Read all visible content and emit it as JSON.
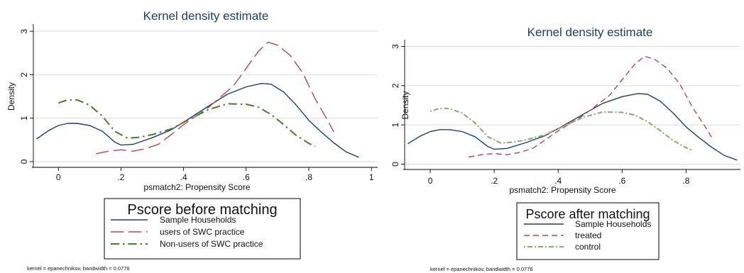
{
  "chart_data": [
    {
      "type": "line",
      "title": "Kernel density estimate",
      "xlabel": "psmatch2: Propensity Score",
      "ylabel": "Density",
      "xlim": [
        -0.08,
        1.02
      ],
      "ylim": [
        -0.1,
        3.1
      ],
      "xticks": [
        0,
        0.2,
        0.4,
        0.6,
        0.8,
        1
      ],
      "xtick_labels": [
        "0",
        ".2",
        ".4",
        ".6",
        ".8",
        "1"
      ],
      "yticks": [
        0,
        1,
        2,
        3
      ],
      "ytick_labels": [
        "0",
        "1",
        "2",
        "3"
      ],
      "grid": "horizontal",
      "legend_title": "Pscore before matching",
      "legend_placement": "below",
      "note": "kernel = epanechnikov, bandwidth = 0.0776",
      "series": [
        {
          "name": "Sample Households",
          "color": "#1f3f66",
          "dash": "solid",
          "x": [
            -0.07,
            -0.03,
            0.0,
            0.03,
            0.06,
            0.1,
            0.14,
            0.18,
            0.2,
            0.24,
            0.3,
            0.36,
            0.42,
            0.48,
            0.54,
            0.6,
            0.65,
            0.68,
            0.72,
            0.76,
            0.8,
            0.84,
            0.88,
            0.92,
            0.96
          ],
          "y": [
            0.52,
            0.72,
            0.83,
            0.88,
            0.88,
            0.83,
            0.7,
            0.45,
            0.38,
            0.4,
            0.55,
            0.73,
            1.0,
            1.28,
            1.55,
            1.72,
            1.8,
            1.78,
            1.6,
            1.3,
            0.95,
            0.68,
            0.43,
            0.22,
            0.1
          ]
        },
        {
          "name": "users of SWC practice",
          "color": "#b5474d",
          "dash": "longdash",
          "x": [
            0.12,
            0.16,
            0.2,
            0.24,
            0.28,
            0.32,
            0.36,
            0.4,
            0.44,
            0.48,
            0.52,
            0.56,
            0.6,
            0.64,
            0.67,
            0.7,
            0.74,
            0.78,
            0.82,
            0.86,
            0.88
          ],
          "y": [
            0.18,
            0.24,
            0.27,
            0.24,
            0.3,
            0.4,
            0.62,
            0.85,
            1.05,
            1.25,
            1.5,
            1.75,
            2.15,
            2.55,
            2.75,
            2.68,
            2.45,
            2.05,
            1.45,
            0.95,
            0.68
          ]
        },
        {
          "name": "Non-users of SWC practice",
          "color": "#4a7a2a",
          "dash": "dashdot",
          "x": [
            0.0,
            0.03,
            0.06,
            0.1,
            0.14,
            0.18,
            0.22,
            0.26,
            0.3,
            0.36,
            0.42,
            0.48,
            0.54,
            0.6,
            0.64,
            0.68,
            0.72,
            0.76,
            0.8,
            0.82
          ],
          "y": [
            1.35,
            1.42,
            1.42,
            1.3,
            1.05,
            0.7,
            0.54,
            0.56,
            0.62,
            0.75,
            0.98,
            1.2,
            1.33,
            1.32,
            1.25,
            1.08,
            0.85,
            0.6,
            0.42,
            0.35
          ]
        }
      ]
    },
    {
      "type": "line",
      "title": "Kernel density estimate",
      "xlabel": "psmatch2: Propensity Score",
      "ylabel": "Density",
      "xlim": [
        -0.08,
        0.97
      ],
      "ylim": [
        -0.1,
        3.1
      ],
      "xticks": [
        0,
        0.2,
        0.4,
        0.6,
        0.8
      ],
      "xtick_labels": [
        "0",
        ".2",
        ".4",
        ".6",
        ".8"
      ],
      "yticks": [
        0,
        1,
        2,
        3
      ],
      "ytick_labels": [
        "0",
        "1",
        "2",
        "3"
      ],
      "grid": "horizontal",
      "legend_title": "Pscore after matching",
      "legend_placement": "below",
      "note": "kernel = epanechnikov, bandwidth = 0.0776",
      "series": [
        {
          "name": "Sample Households",
          "color": "#1f3f66",
          "dash": "solid",
          "x": [
            -0.07,
            -0.03,
            0.0,
            0.03,
            0.06,
            0.1,
            0.14,
            0.18,
            0.2,
            0.24,
            0.3,
            0.36,
            0.42,
            0.48,
            0.54,
            0.6,
            0.65,
            0.68,
            0.72,
            0.76,
            0.8,
            0.84,
            0.88,
            0.92,
            0.96
          ],
          "y": [
            0.52,
            0.72,
            0.83,
            0.88,
            0.88,
            0.83,
            0.7,
            0.45,
            0.38,
            0.4,
            0.55,
            0.73,
            1.0,
            1.28,
            1.55,
            1.72,
            1.8,
            1.78,
            1.6,
            1.3,
            0.95,
            0.68,
            0.43,
            0.22,
            0.1
          ]
        },
        {
          "name": "treated",
          "color": "#b5474d",
          "dash": "dash",
          "x": [
            0.12,
            0.16,
            0.2,
            0.24,
            0.28,
            0.32,
            0.36,
            0.4,
            0.44,
            0.48,
            0.52,
            0.56,
            0.6,
            0.64,
            0.67,
            0.7,
            0.74,
            0.78,
            0.82,
            0.86,
            0.88
          ],
          "y": [
            0.18,
            0.24,
            0.27,
            0.24,
            0.3,
            0.4,
            0.62,
            0.85,
            1.05,
            1.25,
            1.5,
            1.75,
            2.15,
            2.55,
            2.75,
            2.68,
            2.45,
            2.05,
            1.45,
            0.95,
            0.68
          ]
        },
        {
          "name": "control",
          "color": "#8aa86a",
          "dash": "dotdash",
          "x": [
            0.0,
            0.03,
            0.06,
            0.1,
            0.14,
            0.18,
            0.22,
            0.26,
            0.3,
            0.36,
            0.42,
            0.48,
            0.54,
            0.6,
            0.64,
            0.68,
            0.72,
            0.76,
            0.8,
            0.82
          ],
          "y": [
            1.35,
            1.42,
            1.42,
            1.3,
            1.05,
            0.7,
            0.54,
            0.56,
            0.62,
            0.75,
            0.98,
            1.2,
            1.33,
            1.32,
            1.25,
            1.08,
            0.85,
            0.6,
            0.42,
            0.35
          ]
        }
      ]
    }
  ]
}
